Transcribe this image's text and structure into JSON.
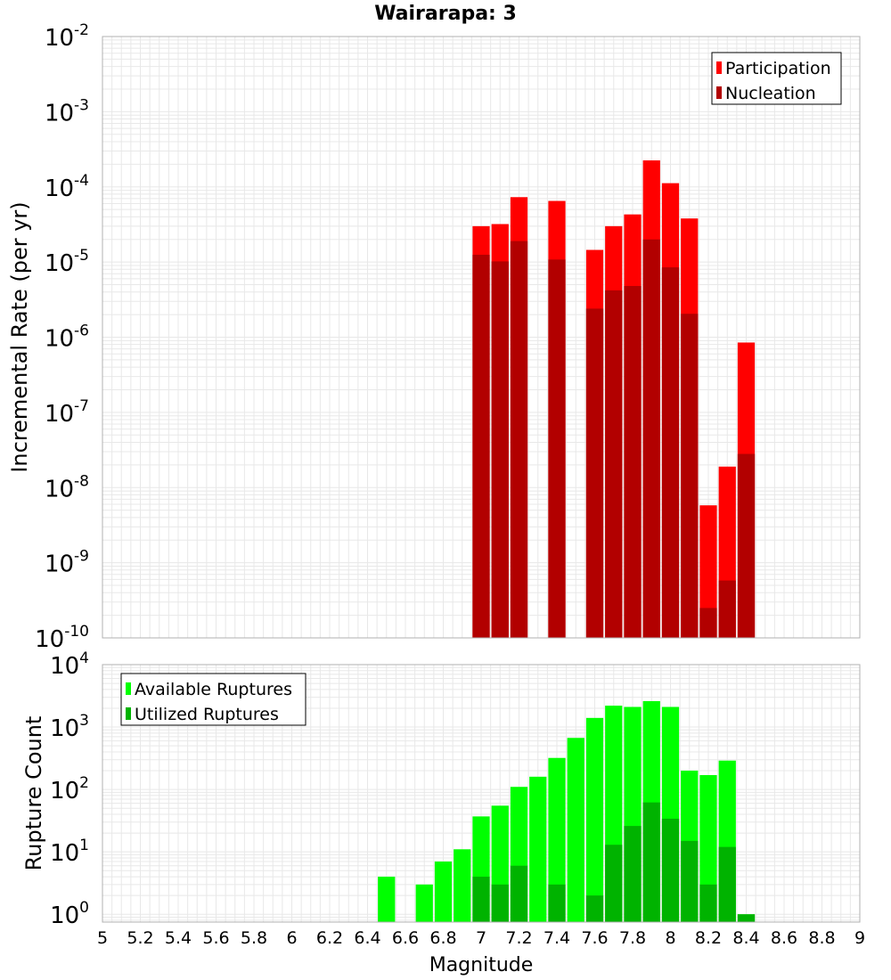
{
  "title": "Wairarapa: 3",
  "xlabel": "Magnitude",
  "colors": {
    "participation": "#ff0000",
    "nucleation": "#b20000",
    "available": "#00ff00",
    "utilized": "#00b300",
    "grid": "#e8e8e8",
    "frame": "#b0b0b0"
  },
  "chart_data": [
    {
      "type": "bar",
      "title": "Wairarapa: 3",
      "xlabel": "",
      "ylabel": "Incremental Rate (per yr)",
      "yscale": "log",
      "xlim": [
        5,
        9
      ],
      "ylim": [
        1e-10,
        0.01
      ],
      "ytick_exponents": [
        "-10",
        "-9",
        "-8",
        "-7",
        "-6",
        "-5",
        "-4",
        "-3",
        "-2"
      ],
      "ytick_base": "10",
      "bar_width": 0.1,
      "legend": {
        "position": "top-right",
        "entries": [
          "Participation",
          "Nucleation"
        ]
      },
      "x": [
        7.0,
        7.1,
        7.2,
        7.4,
        7.6,
        7.7,
        7.8,
        7.9,
        8.0,
        8.1,
        8.2,
        8.3,
        8.4
      ],
      "series": [
        {
          "name": "Participation",
          "values": [
            3e-05,
            3.2e-05,
            7.3e-05,
            6.5e-05,
            1.45e-05,
            3e-05,
            4.3e-05,
            0.000225,
            0.000112,
            3.8e-05,
            5.8e-09,
            1.9e-08,
            8.5e-07
          ]
        },
        {
          "name": "Nucleation",
          "values": [
            1.25e-05,
            1.02e-05,
            1.9e-05,
            1.08e-05,
            2.4e-06,
            4.2e-06,
            4.8e-06,
            2e-05,
            8.5e-06,
            2.05e-06,
            2.5e-10,
            5.8e-10,
            2.8e-08
          ]
        }
      ]
    },
    {
      "type": "bar",
      "title": "",
      "xlabel": "Magnitude",
      "ylabel": "Rupture Count",
      "yscale": "log",
      "xlim": [
        5,
        9
      ],
      "ylim": [
        0.75,
        10000
      ],
      "ytick_exponents": [
        "0",
        "1",
        "2",
        "3",
        "4"
      ],
      "ytick_base": "10",
      "xticks": [
        "5",
        "5.2",
        "5.4",
        "5.6",
        "5.8",
        "6",
        "6.2",
        "6.4",
        "6.6",
        "6.8",
        "7",
        "7.2",
        "7.4",
        "7.6",
        "7.8",
        "8",
        "8.2",
        "8.4",
        "8.6",
        "8.8",
        "9"
      ],
      "bar_width": 0.1,
      "legend": {
        "position": "top-left",
        "entries": [
          "Available Ruptures",
          "Utilized Ruptures"
        ]
      },
      "x": [
        6.5,
        6.7,
        6.8,
        6.9,
        7.0,
        7.1,
        7.2,
        7.3,
        7.4,
        7.5,
        7.6,
        7.7,
        7.8,
        7.9,
        8.0,
        8.1,
        8.2,
        8.3,
        8.4
      ],
      "series": [
        {
          "name": "Available Ruptures",
          "values": [
            4,
            3,
            7,
            11,
            37,
            55,
            110,
            160,
            320,
            670,
            1400,
            2200,
            2100,
            2600,
            2100,
            200,
            170,
            290,
            1
          ]
        },
        {
          "name": "Utilized Ruptures",
          "values": [
            0,
            0,
            0,
            0,
            4,
            3,
            6,
            0,
            3,
            0,
            2,
            13,
            26,
            62,
            34,
            15,
            3,
            12,
            1
          ]
        }
      ]
    }
  ]
}
